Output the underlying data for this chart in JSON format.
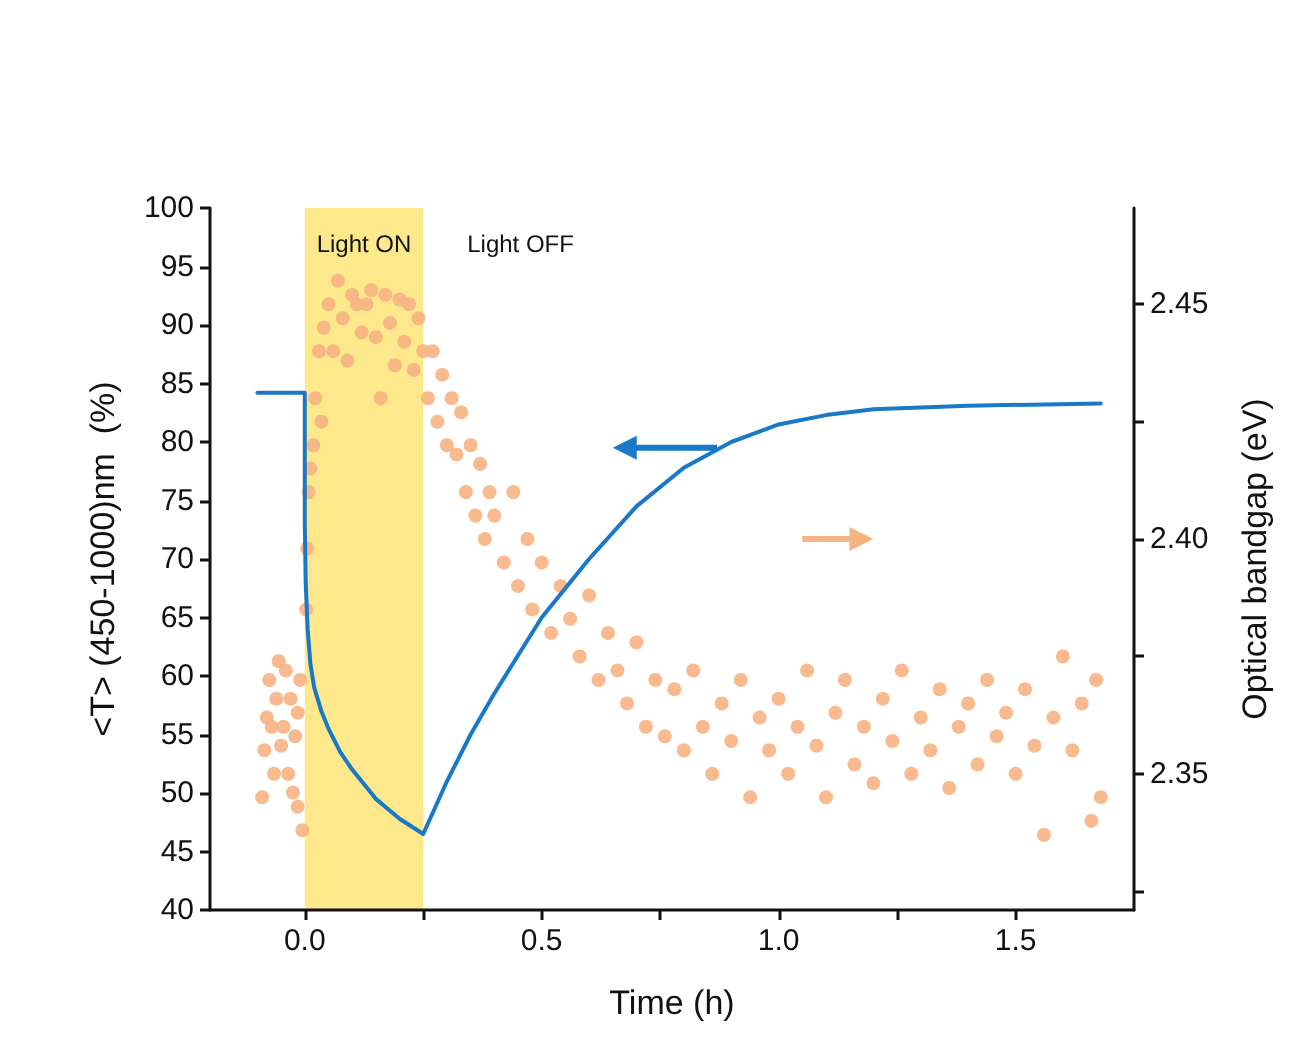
{
  "chart_data": {
    "type": "line",
    "xlabel": "Time (h)",
    "ylabel": "<T> (450-1000)nm  (%)",
    "y2label": "Optical bandgap (eV)",
    "xlim": [
      -0.2,
      1.75
    ],
    "xticks": [
      {
        "value": 0,
        "label": "0.0"
      },
      {
        "value": 0.25,
        "label": null
      },
      {
        "value": 0.5,
        "label": "0.5"
      },
      {
        "value": 0.75,
        "label": null
      },
      {
        "value": 1,
        "label": "1.0"
      },
      {
        "value": 1.25,
        "label": null
      },
      {
        "value": 1.5,
        "label": "1.5"
      }
    ],
    "ylim": [
      40,
      100
    ],
    "yticks": [
      40,
      45,
      50,
      55,
      60,
      65,
      70,
      75,
      80,
      85,
      90,
      95,
      100
    ],
    "y2lim": [
      2.321,
      2.4705
    ],
    "y2ticks": [
      {
        "value": 2.325,
        "label": null
      },
      {
        "value": 2.35,
        "label": "2.35"
      },
      {
        "value": 2.375,
        "label": null
      },
      {
        "value": 2.4,
        "label": "2.40"
      },
      {
        "value": 2.425,
        "label": null
      },
      {
        "value": 2.45,
        "label": "2.45"
      }
    ],
    "grid": false,
    "bands": [
      {
        "axis": "x",
        "from": 0,
        "to": 0.25,
        "color": "#fde98c",
        "label": "Light ON"
      }
    ],
    "annotations": [
      "Light OFF"
    ],
    "series": [
      {
        "color": "#1a78c9",
        "marker": "none",
        "line_style": "solid",
        "x": [
          -0.1,
          0,
          0,
          0.002,
          0.006,
          0.012,
          0.02,
          0.035,
          0.05,
          0.075,
          0.1,
          0.15,
          0.2,
          0.25,
          0.3,
          0.35,
          0.4,
          0.5,
          0.6,
          0.7,
          0.8,
          0.9,
          1.0,
          1.1,
          1.2,
          1.4,
          1.68
        ],
        "values": [
          84.2,
          84.2,
          73,
          68,
          64,
          61,
          59,
          57,
          55.5,
          53.5,
          52,
          49.5,
          47.8,
          46.5,
          51,
          55,
          58.5,
          65,
          70,
          74.5,
          77.8,
          80,
          81.5,
          82.3,
          82.8,
          83.1,
          83.3
        ]
      },
      {
        "type": "scatter",
        "axis": "y2",
        "color": "#f7b282",
        "marker": "circle",
        "x": [
          -0.09,
          -0.085,
          -0.08,
          -0.075,
          -0.07,
          -0.065,
          -0.06,
          -0.055,
          -0.05,
          -0.045,
          -0.04,
          -0.035,
          -0.03,
          -0.025,
          -0.02,
          -0.015,
          -0.01,
          -0.005,
          -0.015,
          0.003,
          0.005,
          0.008,
          0.012,
          0.018,
          0.022,
          0.03,
          0.035,
          0.04,
          0.05,
          0.06,
          0.07,
          0.08,
          0.09,
          0.1,
          0.11,
          0.12,
          0.13,
          0.14,
          0.15,
          0.16,
          0.17,
          0.18,
          0.19,
          0.2,
          0.21,
          0.22,
          0.23,
          0.24,
          0.25,
          0.26,
          0.27,
          0.28,
          0.29,
          0.3,
          0.31,
          0.32,
          0.33,
          0.34,
          0.35,
          0.36,
          0.37,
          0.38,
          0.39,
          0.4,
          0.42,
          0.44,
          0.45,
          0.47,
          0.48,
          0.5,
          0.52,
          0.54,
          0.56,
          0.58,
          0.6,
          0.62,
          0.64,
          0.66,
          0.68,
          0.7,
          0.72,
          0.74,
          0.76,
          0.78,
          0.8,
          0.82,
          0.84,
          0.86,
          0.88,
          0.9,
          0.92,
          0.94,
          0.96,
          0.98,
          1.0,
          1.02,
          1.04,
          1.06,
          1.08,
          1.1,
          1.12,
          1.14,
          1.16,
          1.18,
          1.2,
          1.22,
          1.24,
          1.26,
          1.28,
          1.3,
          1.32,
          1.34,
          1.36,
          1.38,
          1.4,
          1.42,
          1.44,
          1.46,
          1.48,
          1.5,
          1.52,
          1.54,
          1.56,
          1.58,
          1.6,
          1.62,
          1.64,
          1.66,
          1.67,
          1.68
        ],
        "values": [
          2.345,
          2.355,
          2.362,
          2.37,
          2.36,
          2.35,
          2.366,
          2.374,
          2.356,
          2.36,
          2.372,
          2.35,
          2.366,
          2.346,
          2.358,
          2.363,
          2.37,
          2.338,
          2.343,
          2.385,
          2.398,
          2.41,
          2.415,
          2.42,
          2.43,
          2.44,
          2.425,
          2.445,
          2.45,
          2.44,
          2.455,
          2.447,
          2.438,
          2.452,
          2.45,
          2.444,
          2.45,
          2.453,
          2.443,
          2.43,
          2.452,
          2.446,
          2.437,
          2.451,
          2.442,
          2.45,
          2.436,
          2.447,
          2.44,
          2.43,
          2.44,
          2.425,
          2.435,
          2.42,
          2.43,
          2.418,
          2.427,
          2.41,
          2.42,
          2.405,
          2.416,
          2.4,
          2.41,
          2.405,
          2.395,
          2.41,
          2.39,
          2.4,
          2.385,
          2.395,
          2.38,
          2.39,
          2.383,
          2.375,
          2.388,
          2.37,
          2.38,
          2.372,
          2.365,
          2.378,
          2.36,
          2.37,
          2.358,
          2.368,
          2.355,
          2.372,
          2.36,
          2.35,
          2.365,
          2.357,
          2.37,
          2.345,
          2.362,
          2.355,
          2.366,
          2.35,
          2.36,
          2.372,
          2.356,
          2.345,
          2.363,
          2.37,
          2.352,
          2.36,
          2.348,
          2.366,
          2.357,
          2.372,
          2.35,
          2.362,
          2.355,
          2.368,
          2.347,
          2.36,
          2.365,
          2.352,
          2.37,
          2.358,
          2.363,
          2.35,
          2.368,
          2.356,
          2.337,
          2.362,
          2.375,
          2.355,
          2.365,
          2.34,
          2.37,
          2.345
        ]
      }
    ]
  }
}
